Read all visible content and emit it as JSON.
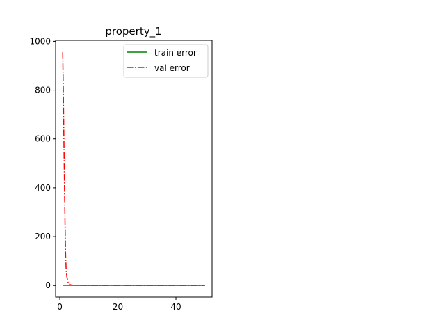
{
  "chart_data": {
    "type": "line",
    "title": "property_1",
    "xlabel": "",
    "ylabel": "",
    "xlim": [
      -1.45,
      52.45
    ],
    "ylim": [
      -47.8,
      1004
    ],
    "xticks": [
      0,
      20,
      40
    ],
    "yticks": [
      0,
      200,
      400,
      600,
      800,
      1000
    ],
    "grid": false,
    "legend": {
      "placement": "top-right"
    },
    "series": [
      {
        "name": "train error",
        "color": "#008000",
        "style": "solid",
        "x": [
          1,
          50
        ],
        "y": [
          0.5,
          0.5
        ]
      },
      {
        "name": "val error",
        "color": "#ff0000",
        "style": "dashdot",
        "x": [
          1,
          1.2,
          1.4,
          1.6,
          1.8,
          2,
          2.2,
          2.5,
          2.8,
          3,
          3.5,
          4,
          5,
          6,
          8,
          10,
          15,
          20,
          30,
          40,
          50
        ],
        "y": [
          955,
          800,
          600,
          420,
          250,
          120,
          60,
          30,
          15,
          8,
          4,
          2,
          1,
          0.8,
          0.5,
          0.4,
          0.3,
          0.3,
          0.3,
          0.3,
          0.3
        ]
      }
    ]
  }
}
